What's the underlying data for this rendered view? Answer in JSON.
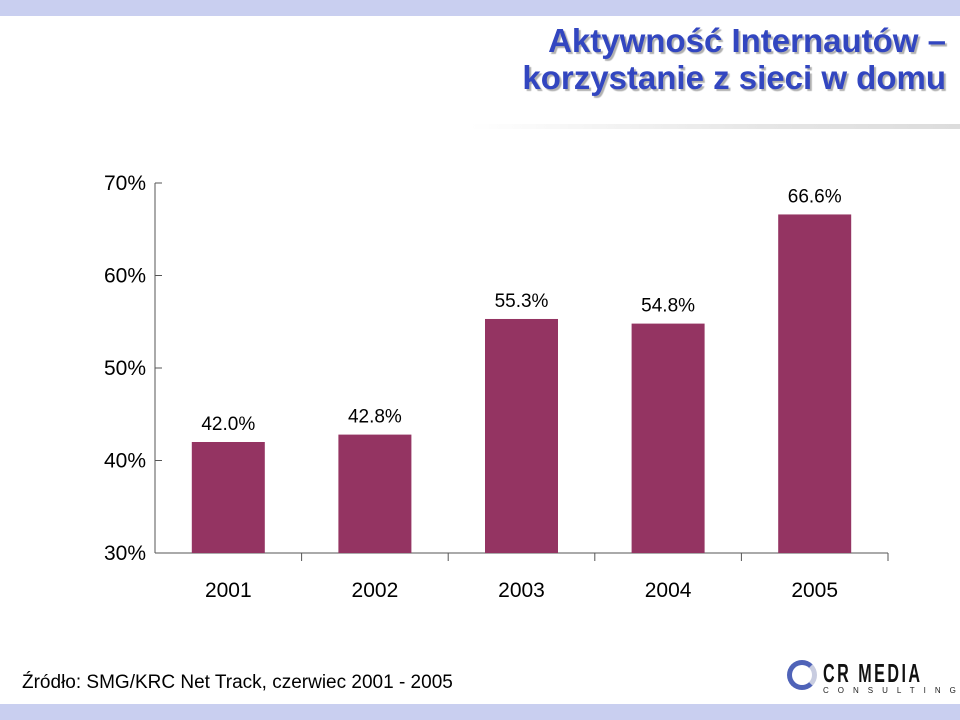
{
  "header": {
    "title_line1": "Aktywność Internautów –",
    "title_line2": "korzystanie z sieci w domu"
  },
  "chart_data": {
    "type": "bar",
    "categories": [
      "2001",
      "2002",
      "2003",
      "2004",
      "2005"
    ],
    "values": [
      42.0,
      42.8,
      55.3,
      54.8,
      66.6
    ],
    "value_labels": [
      "42.0%",
      "42.8%",
      "55.3%",
      "54.8%",
      "66.6%"
    ],
    "yticks": [
      30,
      40,
      50,
      60,
      70
    ],
    "ytick_labels": [
      "30%",
      "40%",
      "50%",
      "60%",
      "70%"
    ],
    "ylim": [
      30,
      70
    ],
    "grid": false,
    "bar_color": "#943462"
  },
  "footer": {
    "source": "Źródło: SMG/KRC Net Track, czerwiec 2001 - 2005",
    "logo_main": "CR MEDIA",
    "logo_sub": "CONSULTING"
  },
  "icons": {
    "logo": "crmedia-logo-icon"
  }
}
